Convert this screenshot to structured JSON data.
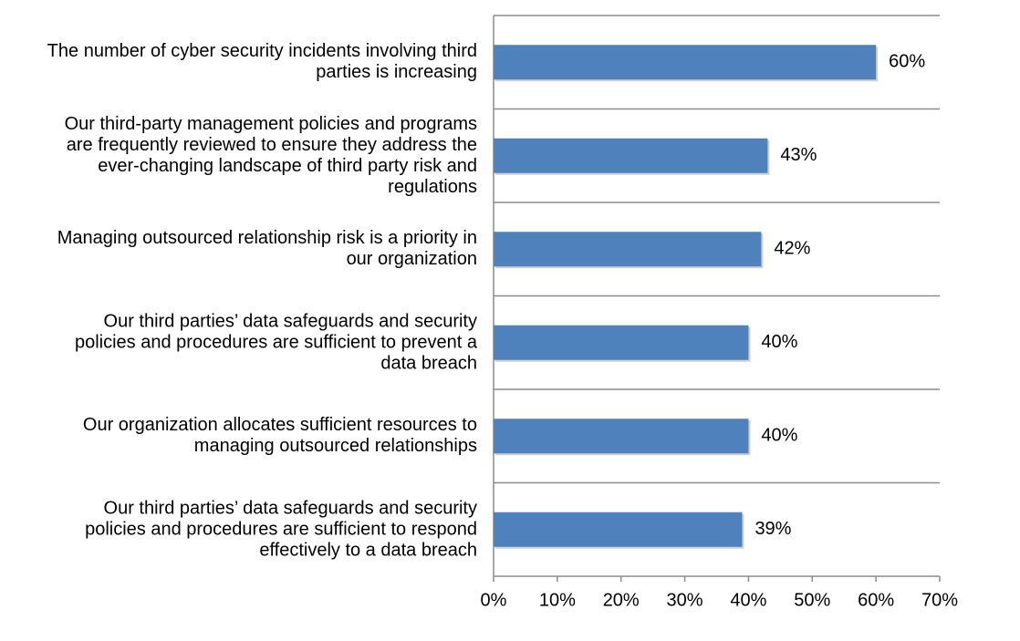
{
  "chart_data": {
    "type": "hbar",
    "categories": [
      "The number of cyber security incidents involving third parties is increasing",
      "Our third-party management policies and programs are frequently reviewed to ensure they address the ever-changing landscape of third party risk and regulations",
      "Managing outsourced relationship risk is a priority in our organization",
      "Our third parties’ data safeguards and security policies and procedures are sufficient to prevent a data breach",
      "Our organization allocates sufficient resources to managing outsourced relationships",
      "Our third parties’ data safeguards and security policies and procedures are sufficient to respond effectively to a data breach"
    ],
    "values": [
      60,
      43,
      42,
      40,
      40,
      39
    ],
    "value_labels": [
      "60%",
      "43%",
      "42%",
      "40%",
      "40%",
      "39%"
    ],
    "color": "#4f81bd",
    "xlim": [
      0,
      70
    ],
    "xticks": [
      {
        "value": 0,
        "label": "0%"
      },
      {
        "value": 10,
        "label": "10%"
      },
      {
        "value": 20,
        "label": "20%"
      },
      {
        "value": 30,
        "label": "30%"
      },
      {
        "value": 40,
        "label": "40%"
      },
      {
        "value": 50,
        "label": "50%"
      },
      {
        "value": 60,
        "label": "60%"
      },
      {
        "value": 70,
        "label": "70%"
      }
    ]
  }
}
